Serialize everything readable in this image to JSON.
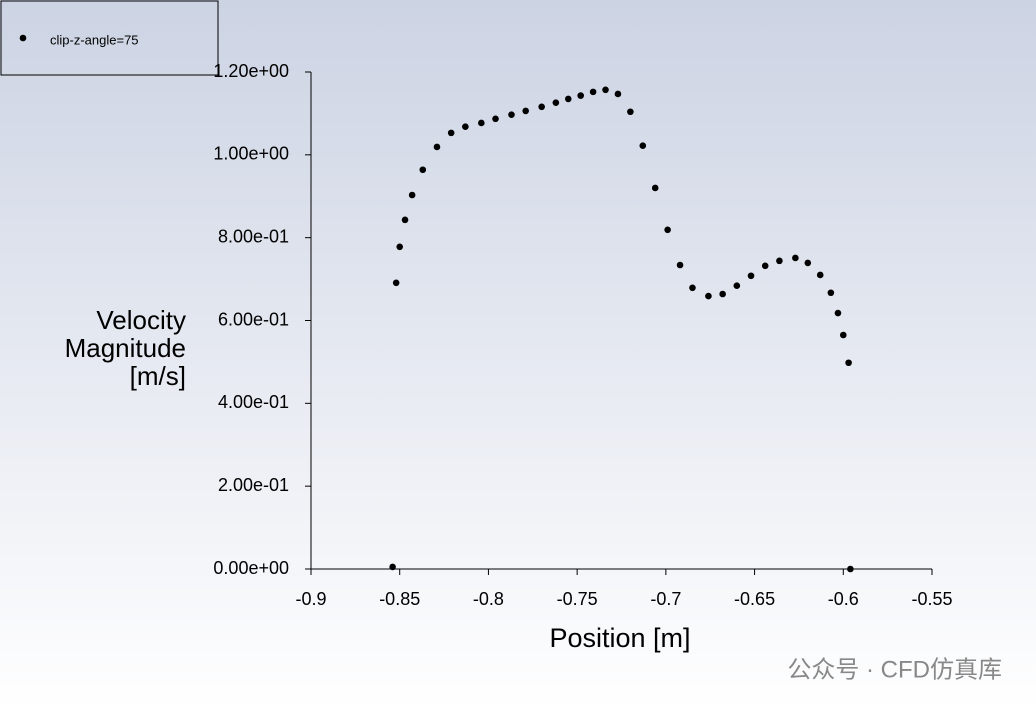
{
  "chart_data": {
    "type": "scatter",
    "xlabel": "Position [m]",
    "ylabel": [
      "Velocity",
      "Magnitude",
      "[m/s]"
    ],
    "watermark": "公众号 · CFD仿真库",
    "legend": "top-left",
    "xlim": [
      -0.9,
      -0.55
    ],
    "xticks": [
      -0.9,
      -0.85,
      -0.8,
      -0.75,
      -0.7,
      -0.65,
      -0.6,
      -0.55
    ],
    "ylim": [
      0,
      1.2
    ],
    "yticks": [
      {
        "value": 0,
        "label": "0.00e+00"
      },
      {
        "value": 0.2,
        "label": "2.00e-01"
      },
      {
        "value": 0.4,
        "label": "4.00e-01"
      },
      {
        "value": 0.6,
        "label": "6.00e-01"
      },
      {
        "value": 0.8,
        "label": "8.00e-01"
      },
      {
        "value": 1.0,
        "label": "1.00e+00"
      },
      {
        "value": 1.2,
        "label": "1.20e+00"
      }
    ],
    "series": [
      {
        "name": "clip-z-angle=75",
        "color": "#000000",
        "x": [
          -0.854,
          -0.852,
          -0.85,
          -0.847,
          -0.843,
          -0.837,
          -0.829,
          -0.821,
          -0.813,
          -0.804,
          -0.796,
          -0.787,
          -0.779,
          -0.77,
          -0.762,
          -0.755,
          -0.748,
          -0.741,
          -0.734,
          -0.727,
          -0.72,
          -0.713,
          -0.706,
          -0.699,
          -0.692,
          -0.685,
          -0.676,
          -0.668,
          -0.66,
          -0.652,
          -0.644,
          -0.636,
          -0.627,
          -0.62,
          -0.613,
          -0.607,
          -0.603,
          -0.6,
          -0.597,
          -0.596
        ],
        "values": [
          0.005,
          0.691,
          0.778,
          0.843,
          0.903,
          0.964,
          1.019,
          1.053,
          1.068,
          1.077,
          1.087,
          1.097,
          1.106,
          1.116,
          1.126,
          1.135,
          1.143,
          1.152,
          1.157,
          1.147,
          1.104,
          1.022,
          0.92,
          0.819,
          0.734,
          0.679,
          0.659,
          0.664,
          0.684,
          0.708,
          0.732,
          0.744,
          0.751,
          0.739,
          0.71,
          0.667,
          0.618,
          0.565,
          0.498,
          0.0
        ]
      }
    ]
  }
}
